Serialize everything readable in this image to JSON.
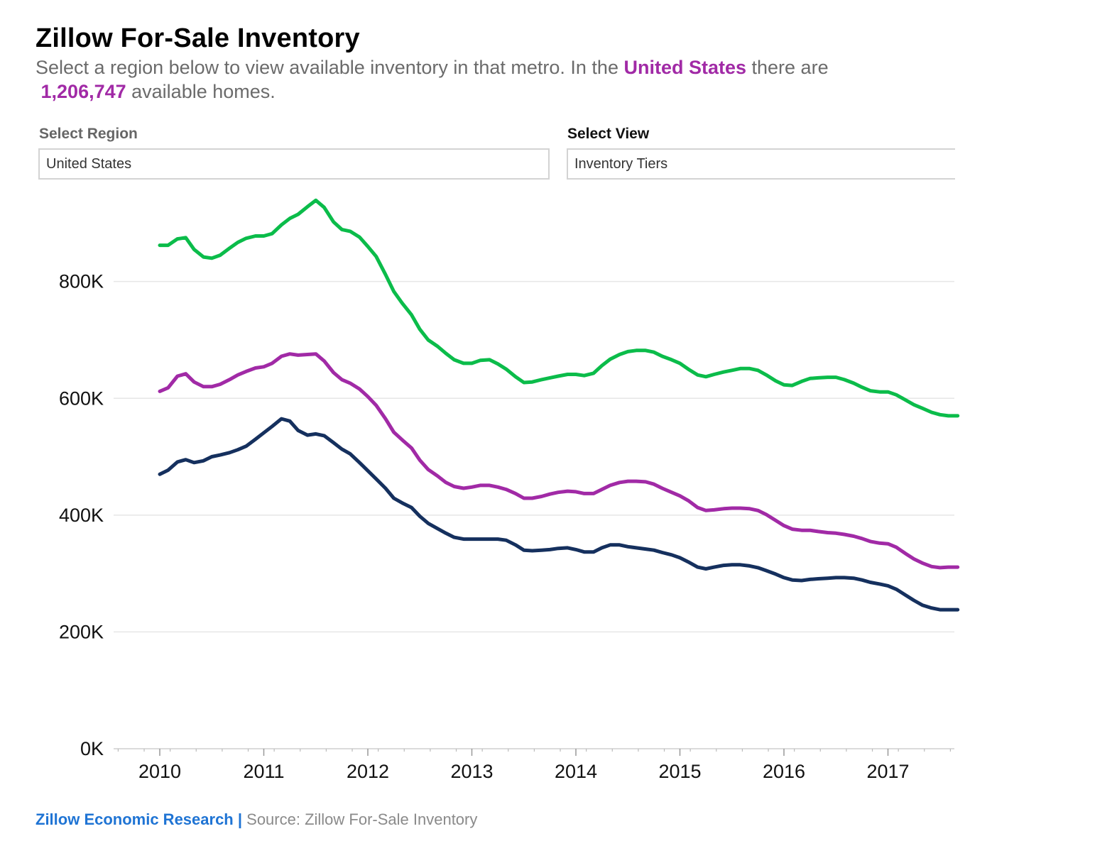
{
  "header": {
    "title": "Zillow For-Sale Inventory",
    "subtitle_part1": "Select a region below to view available inventory in that metro. In the ",
    "subtitle_region": "United States",
    "subtitle_part2": " there are",
    "subtitle_count": "1,206,747",
    "subtitle_part3": " available homes."
  },
  "controls": {
    "region_label": "Select Region",
    "region_value": "United States",
    "view_label": "Select View",
    "view_value": "Inventory Tiers"
  },
  "footer": {
    "brand": "Zillow Economic Research",
    "separator": " | ",
    "source": "Source: Zillow For-Sale Inventory"
  },
  "colors": {
    "accent": "#a12aa6",
    "link": "#1f74d4",
    "series_green": "#0bbc4a",
    "series_purple": "#a12aa6",
    "series_navy": "#15305e"
  },
  "chart_data": {
    "type": "line",
    "title": "",
    "xlabel": "",
    "ylabel": "",
    "xlim": [
      2009.6,
      2017.67
    ],
    "ylim": [
      0,
      960000
    ],
    "grid": true,
    "yticks": [
      0,
      200000,
      400000,
      600000,
      800000
    ],
    "ytick_labels": [
      "0K",
      "200K",
      "400K",
      "600K",
      "800K"
    ],
    "xticks": [
      2010,
      2011,
      2012,
      2013,
      2014,
      2015,
      2016,
      2017
    ],
    "xtick_labels": [
      "2010",
      "2011",
      "2012",
      "2013",
      "2014",
      "2015",
      "2016",
      "2017"
    ],
    "x": [
      2010.0,
      2010.08,
      2010.17,
      2010.25,
      2010.33,
      2010.42,
      2010.5,
      2010.58,
      2010.67,
      2010.75,
      2010.83,
      2010.92,
      2011.0,
      2011.08,
      2011.17,
      2011.25,
      2011.33,
      2011.42,
      2011.5,
      2011.58,
      2011.67,
      2011.75,
      2011.83,
      2011.92,
      2012.0,
      2012.08,
      2012.17,
      2012.25,
      2012.33,
      2012.42,
      2012.5,
      2012.58,
      2012.67,
      2012.75,
      2012.83,
      2012.92,
      2013.0,
      2013.08,
      2013.17,
      2013.25,
      2013.33,
      2013.42,
      2013.5,
      2013.58,
      2013.67,
      2013.75,
      2013.83,
      2013.92,
      2014.0,
      2014.08,
      2014.17,
      2014.25,
      2014.33,
      2014.42,
      2014.5,
      2014.58,
      2014.67,
      2014.75,
      2014.83,
      2014.92,
      2015.0,
      2015.08,
      2015.17,
      2015.25,
      2015.33,
      2015.42,
      2015.5,
      2015.58,
      2015.67,
      2015.75,
      2015.83,
      2015.92,
      2016.0,
      2016.08,
      2016.17,
      2016.25,
      2016.33,
      2016.42,
      2016.5,
      2016.58,
      2016.67,
      2016.75,
      2016.83,
      2016.92,
      2017.0,
      2017.08,
      2017.17,
      2017.25,
      2017.33,
      2017.42,
      2017.5,
      2017.58,
      2017.67
    ],
    "series": [
      {
        "color": "#0bbc4a",
        "values": [
          862000,
          862000,
          873000,
          875000,
          855000,
          842000,
          840000,
          845000,
          857000,
          867000,
          874000,
          878000,
          878000,
          882000,
          897000,
          908000,
          915000,
          928000,
          939000,
          927000,
          902000,
          889000,
          886000,
          876000,
          860000,
          843000,
          812000,
          783000,
          763000,
          743000,
          718000,
          700000,
          689000,
          677000,
          666000,
          660000,
          660000,
          665000,
          666000,
          659000,
          650000,
          637000,
          627000,
          628000,
          632000,
          635000,
          638000,
          641000,
          641000,
          639000,
          643000,
          656000,
          667000,
          675000,
          680000,
          682000,
          682000,
          679000,
          672000,
          666000,
          660000,
          650000,
          640000,
          637000,
          641000,
          645000,
          648000,
          651000,
          651000,
          648000,
          640000,
          630000,
          623000,
          622000,
          629000,
          634000,
          635000,
          636000,
          636000,
          632000,
          626000,
          619000,
          613000,
          611000,
          611000,
          606000,
          597000,
          589000,
          583000,
          576000,
          572000,
          570000,
          570000
        ]
      },
      {
        "color": "#a12aa6",
        "values": [
          612000,
          618000,
          638000,
          642000,
          628000,
          620000,
          620000,
          624000,
          632000,
          640000,
          646000,
          652000,
          654000,
          660000,
          672000,
          676000,
          674000,
          675000,
          676000,
          664000,
          644000,
          632000,
          626000,
          616000,
          603000,
          588000,
          565000,
          542000,
          529000,
          515000,
          494000,
          478000,
          467000,
          456000,
          449000,
          446000,
          448000,
          451000,
          451000,
          448000,
          444000,
          437000,
          429000,
          429000,
          432000,
          436000,
          439000,
          441000,
          440000,
          437000,
          437000,
          444000,
          451000,
          456000,
          458000,
          458000,
          457000,
          453000,
          446000,
          439000,
          433000,
          425000,
          413000,
          408000,
          409000,
          411000,
          412000,
          412000,
          411000,
          408000,
          401000,
          391000,
          382000,
          376000,
          374000,
          374000,
          372000,
          370000,
          369000,
          367000,
          364000,
          360000,
          355000,
          352000,
          351000,
          345000,
          334000,
          325000,
          318000,
          312000,
          310000,
          311000,
          311000
        ]
      },
      {
        "color": "#15305e",
        "values": [
          470000,
          477000,
          491000,
          495000,
          490000,
          493000,
          500000,
          503000,
          507000,
          512000,
          518000,
          530000,
          541000,
          552000,
          565000,
          561000,
          545000,
          537000,
          539000,
          536000,
          524000,
          513000,
          505000,
          490000,
          476000,
          462000,
          446000,
          429000,
          421000,
          413000,
          398000,
          386000,
          377000,
          369000,
          362000,
          359000,
          359000,
          359000,
          359000,
          359000,
          357000,
          349000,
          340000,
          339000,
          340000,
          341000,
          343000,
          344000,
          341000,
          337000,
          337000,
          344000,
          349000,
          349000,
          346000,
          344000,
          342000,
          340000,
          336000,
          332000,
          327000,
          320000,
          311000,
          308000,
          311000,
          314000,
          315000,
          315000,
          313000,
          310000,
          305000,
          299000,
          293000,
          289000,
          288000,
          290000,
          291000,
          292000,
          293000,
          293000,
          292000,
          289000,
          285000,
          282000,
          279000,
          273000,
          263000,
          254000,
          246000,
          241000,
          238000,
          238000,
          238000
        ]
      }
    ]
  }
}
